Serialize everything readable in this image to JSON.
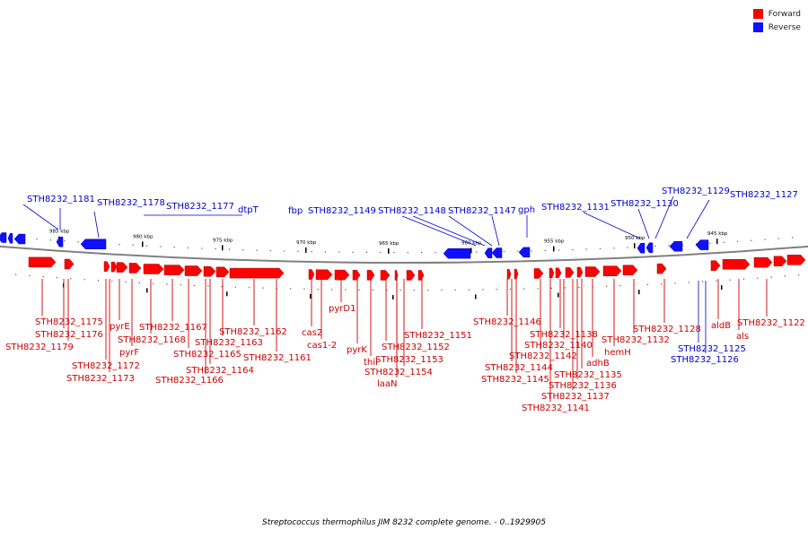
{
  "legend": [
    {
      "label": "Forward",
      "color": "#ff0000"
    },
    {
      "label": "Reverse",
      "color": "#0000ff"
    }
  ],
  "colors": {
    "forward": "#ff0000",
    "forward_label": "#cc0000",
    "reverse": "#1010ff",
    "reverse_label": "#0000cc",
    "backbone": "#808080"
  },
  "caption": "Streptococcus thermophilus JIM 8232 complete genome. - 0..1929905",
  "ticks": [
    "985 kbp",
    "980 kbp",
    "975 kbp",
    "970 kbp",
    "965 kbp",
    "960 kbp",
    "955 kbp",
    "950 kbp",
    "945 kbp"
  ],
  "forward_genes": [
    {
      "label": "STH8232_1175"
    },
    {
      "label": "STH8232_1176"
    },
    {
      "label": "STH8232_1179"
    },
    {
      "label": "pyrE"
    },
    {
      "label": "pyrF"
    },
    {
      "label": "STH8232_1172"
    },
    {
      "label": "STH8232_1173"
    },
    {
      "label": "STH8232_1168"
    },
    {
      "label": "STH8232_1167"
    },
    {
      "label": "STH8232_1165"
    },
    {
      "label": "STH8232_1166"
    },
    {
      "label": "STH8232_1164"
    },
    {
      "label": "STH8232_1163"
    },
    {
      "label": "STH8232_1162"
    },
    {
      "label": "STH8232_1161"
    },
    {
      "label": "cas2"
    },
    {
      "label": "cas1-2"
    },
    {
      "label": "pyrD1"
    },
    {
      "label": "pyrK"
    },
    {
      "label": "thiI"
    },
    {
      "label": "STH8232_1152"
    },
    {
      "label": "STH8232_1153"
    },
    {
      "label": "STH8232_1154"
    },
    {
      "label": "laaN"
    },
    {
      "label": "STH8232_1151"
    },
    {
      "label": "STH8232_1146"
    },
    {
      "label": "STH8232_1144"
    },
    {
      "label": "STH8232_1145"
    },
    {
      "label": "STH8232_1142"
    },
    {
      "label": "STH8232_1141"
    },
    {
      "label": "STH8232_1138"
    },
    {
      "label": "STH8232_1140"
    },
    {
      "label": "STH8232_1137"
    },
    {
      "label": "STH8232_1136"
    },
    {
      "label": "STH8232_1135"
    },
    {
      "label": "adhB"
    },
    {
      "label": "hemH"
    },
    {
      "label": "STH8232_1132"
    },
    {
      "label": "STH8232_1128"
    },
    {
      "label": "aldB"
    },
    {
      "label": "als"
    },
    {
      "label": "STH8232_1122"
    }
  ],
  "reverse_genes": [
    {
      "label": "STH8232_1181"
    },
    {
      "label": "STH8232_1178"
    },
    {
      "label": "STH8232_1177"
    },
    {
      "label": "dtpT"
    },
    {
      "label": "fbp"
    },
    {
      "label": "STH8232_1149"
    },
    {
      "label": "STH8232_1148"
    },
    {
      "label": "STH8232_1147"
    },
    {
      "label": "gph"
    },
    {
      "label": "STH8232_1131"
    },
    {
      "label": "STH8232_1130"
    },
    {
      "label": "STH8232_1129"
    },
    {
      "label": "STH8232_1127"
    },
    {
      "label": "STH8232_1125"
    },
    {
      "label": "STH8232_1126"
    }
  ]
}
